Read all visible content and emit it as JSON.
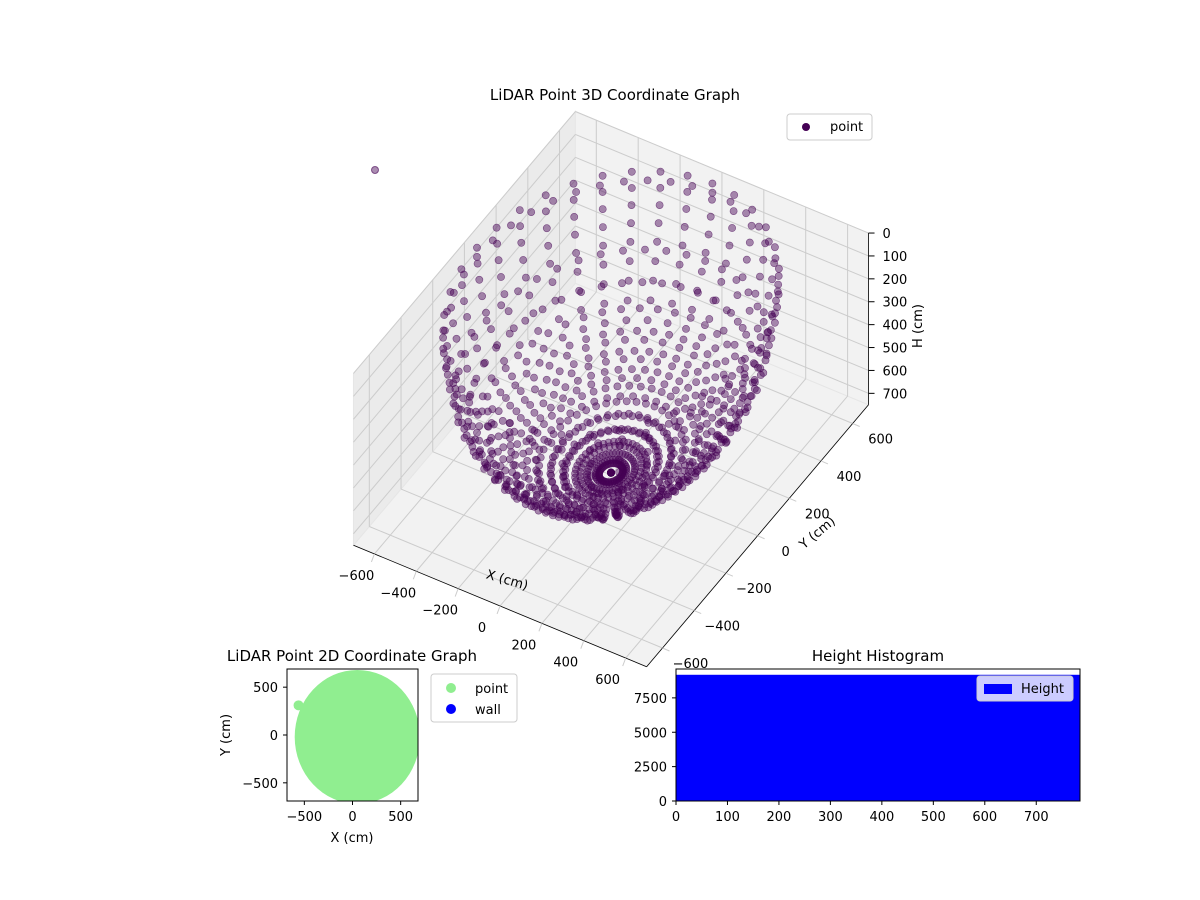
{
  "colors": {
    "point3d": "#440154",
    "point2d": "#90ee90",
    "wall": "#0000ff",
    "hist": "#0000ff",
    "pane": "#f2f2f2",
    "grid": "#cccccc"
  },
  "chart_data": [
    {
      "type": "scatter",
      "projection": "3d",
      "title": "LiDAR Point 3D Coordinate Graph",
      "xlabel": "X (cm)",
      "ylabel": "Y (cm)",
      "zlabel": "H (cm)",
      "xticks": [
        "−600",
        "−400",
        "−200",
        "0",
        "200",
        "400",
        "600"
      ],
      "yticks": [
        "−600",
        "−400",
        "−200",
        "0",
        "200",
        "400",
        "600"
      ],
      "zticks": [
        "0",
        "100",
        "200",
        "300",
        "400",
        "500",
        "600",
        "700"
      ],
      "xlim": [
        -700,
        700
      ],
      "ylim": [
        -700,
        700
      ],
      "zlim": [
        0,
        750
      ],
      "z_inverted": true,
      "legend": {
        "position": "top-right",
        "entries": [
          {
            "label": "point"
          }
        ]
      },
      "grid": true,
      "series": [
        {
          "name": "point",
          "description_of_shape": "dome of points on rings around the origin",
          "rings": {
            "count": 14,
            "points_per_ring": 44,
            "max_radius": 640,
            "max_height": 740
          },
          "outliers": [
            [
              -650,
              -300,
              0
            ]
          ]
        }
      ]
    },
    {
      "type": "scatter",
      "title": "LiDAR Point 2D Coordinate Graph",
      "xlabel": "X (cm)",
      "ylabel": "Y (cm)",
      "xticks": [
        "−500",
        "0",
        "500"
      ],
      "yticks": [
        "−500",
        "0",
        "500"
      ],
      "xlim": [
        -680,
        680
      ],
      "ylim": [
        -690,
        690
      ],
      "legend": {
        "position": "outside-right",
        "entries": [
          {
            "label": "point"
          },
          {
            "label": "wall"
          }
        ]
      },
      "series": [
        {
          "name": "point",
          "region": "filled disc of points, radius about 650, centered near (50, -20)"
        },
        {
          "name": "wall",
          "points": []
        }
      ]
    },
    {
      "type": "bar",
      "title": "Height Histogram",
      "xticks": [
        "0",
        "100",
        "200",
        "300",
        "400",
        "500",
        "600",
        "700"
      ],
      "yticks": [
        "0",
        "2500",
        "5000",
        "7500"
      ],
      "xlim": [
        0,
        785
      ],
      "ylim": [
        0,
        9600
      ],
      "legend": {
        "position": "top-right",
        "entries": [
          {
            "label": "Height"
          }
        ]
      },
      "series": [
        {
          "name": "Height",
          "bins": [
            {
              "x0": 0,
              "x1": 785,
              "count": 9180
            }
          ]
        }
      ]
    }
  ]
}
